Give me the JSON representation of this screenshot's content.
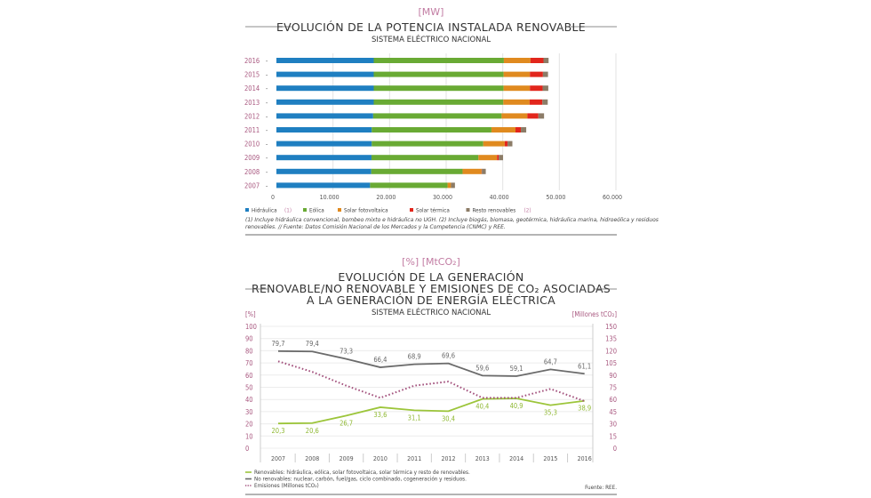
{
  "colors": {
    "hidraulica": "#1f7fc1",
    "eolica": "#69aa34",
    "fotovoltaica": "#e08a1f",
    "termica": "#e2261c",
    "resto": "#8c7c67",
    "renovables": "#9cc53a",
    "no_renovables": "#6b6b6b",
    "emisiones": "#a3527d",
    "accent": "#c27ca3"
  },
  "chart_data": [
    {
      "type": "bar",
      "orientation": "horizontal-stacked",
      "unit_label": "[MW]",
      "title": "EVOLUCIÓN DE LA POTENCIA INSTALADA RENOVABLE",
      "subtitle": "SISTEMA ELÉCTRICO NACIONAL",
      "categories": [
        "2016",
        "2015",
        "2014",
        "2013",
        "2012",
        "2011",
        "2010",
        "2009",
        "2008",
        "2007"
      ],
      "xlim": [
        0,
        60000
      ],
      "xticks": [
        "0",
        "10.000",
        "20.000",
        "30.000",
        "40.000",
        "50.000",
        "60.000"
      ],
      "grid": true,
      "legend_placement": "bottom-left",
      "series": [
        {
          "name": "Hidráulica",
          "note": "(1)",
          "values": [
            17200,
            17200,
            17200,
            17200,
            17100,
            16850,
            16850,
            16800,
            16750,
            16550
          ]
        },
        {
          "name": "Eólica",
          "values": [
            23000,
            22950,
            22950,
            22900,
            22700,
            21150,
            19700,
            18900,
            16150,
            13700
          ]
        },
        {
          "name": "Solar fotovoltaica",
          "values": [
            4700,
            4650,
            4650,
            4650,
            4550,
            4250,
            3800,
            3300,
            3350,
            600
          ]
        },
        {
          "name": "Solar térmica",
          "values": [
            2300,
            2300,
            2250,
            2250,
            1950,
            950,
            500,
            300,
            50,
            0
          ]
        },
        {
          "name": "Resto renovables",
          "note": "(2)",
          "values": [
            900,
            900,
            1000,
            950,
            1000,
            950,
            850,
            750,
            700,
            700
          ]
        }
      ],
      "footnote_1": "(1) Incluye hidráulica convencional, bombeo mixto e hidráulica no UGH. (2) Incluye biogás, biomasa, geotérmica, hidráulica marina, hidroeólica y residuos",
      "footnote_2": "renovables. // Fuente: Datos Comisión Nacional de los Mercados y la Competencia (CNMC) y REE."
    },
    {
      "type": "line",
      "unit_label": "[%] [MtCO₂]",
      "title_lines": [
        "EVOLUCIÓN DE LA GENERACIÓN",
        "RENOVABLE/NO RENOVABLE Y EMISIONES DE CO₂ ASOCIADAS",
        "A LA GENERACIÓN DE ENERGÍA ELÉCTRICA"
      ],
      "subtitle": "SISTEMA ELÉCTRICO NACIONAL",
      "ylabel_left": "[%]",
      "ylabel_right": "[Millones tCO₂]",
      "ylim_left": [
        0,
        100
      ],
      "ylim_right": [
        0,
        150
      ],
      "yticks_left": [
        "0",
        "10",
        "20",
        "30",
        "40",
        "50",
        "60",
        "70",
        "80",
        "90",
        "100"
      ],
      "yticks_right": [
        "0",
        "15",
        "30",
        "45",
        "60",
        "75",
        "90",
        "105",
        "120",
        "135",
        "150"
      ],
      "x": [
        "2007",
        "2008",
        "2009",
        "2010",
        "2011",
        "2012",
        "2013",
        "2014",
        "2015",
        "2016"
      ],
      "grid": true,
      "legend_placement": "bottom",
      "series": [
        {
          "key": "renovables",
          "axis": "left",
          "values": [
            20.3,
            20.6,
            26.7,
            33.6,
            31.1,
            30.4,
            40.4,
            40.9,
            35.3,
            38.9
          ],
          "labels": [
            "20,3",
            "20,6",
            "26,7",
            "33,6",
            "31,1",
            "30,4",
            "40,4",
            "40,9",
            "35,3",
            "38,9"
          ],
          "legend": "Renovables: hidráulica, eólica, solar fotovoltaica, solar térmica y resto de renovables."
        },
        {
          "key": "no_renovables",
          "axis": "left",
          "values": [
            79.7,
            79.4,
            73.3,
            66.4,
            68.9,
            69.6,
            59.6,
            59.1,
            64.7,
            61.1
          ],
          "labels": [
            "79,7",
            "79,4",
            "73,3",
            "66,4",
            "68,9",
            "69,6",
            "59,6",
            "59,1",
            "64,7",
            "61,1"
          ],
          "legend": "No renovables: nuclear, carbón, fuel/gas, ciclo combinado, cogeneración y residuos."
        },
        {
          "key": "emisiones",
          "axis": "right",
          "style": "dotted",
          "values": [
            107,
            94,
            77,
            62,
            77,
            82,
            62,
            62,
            73,
            58
          ],
          "legend": "Emisiones (Millones tCO₂)"
        }
      ],
      "source": "Fuente: REE."
    }
  ]
}
